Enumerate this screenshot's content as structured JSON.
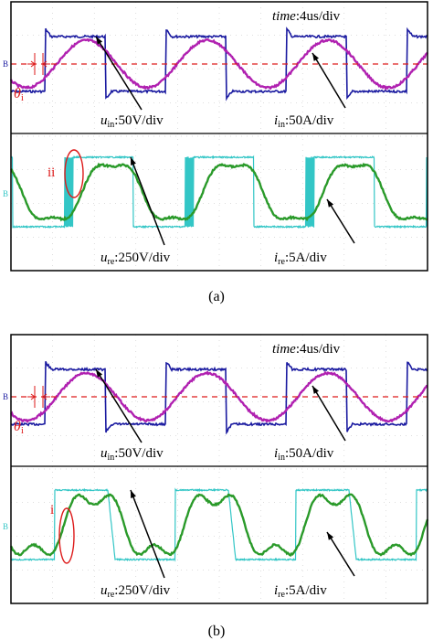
{
  "colors": {
    "u_in": "#1a1aa0",
    "i_in": "#b020b0",
    "u_re": "#33c6c6",
    "i_re": "#2a9a2a",
    "annotation": "#dd1a1a",
    "frame": "#000000",
    "grid": "#bdbdbd"
  },
  "channel_markers": {
    "top": "B",
    "bottom": "B"
  },
  "panels": [
    {
      "sub_label": "(a)",
      "time_label_italic": "time",
      "time_label_rest": ":4us/div",
      "theta": {
        "base": "θ",
        "sub": "i"
      },
      "u_in": {
        "base": "u",
        "sub": "in",
        "rest": ":50V/div"
      },
      "i_in": {
        "base": "i",
        "sub": "in",
        "rest": ":50A/div"
      },
      "u_re": {
        "base": "u",
        "sub": "re",
        "rest": ":250V/div"
      },
      "i_re": {
        "base": "i",
        "sub": "re",
        "rest": ":5A/div"
      },
      "mark": "ii"
    },
    {
      "sub_label": "(b)",
      "time_label_italic": "time",
      "time_label_rest": ":4us/div",
      "theta": {
        "base": "θ",
        "sub": "i"
      },
      "u_in": {
        "base": "u",
        "sub": "in",
        "rest": ":50V/div"
      },
      "i_in": {
        "base": "i",
        "sub": "in",
        "rest": ":50A/div"
      },
      "u_re": {
        "base": "u",
        "sub": "re",
        "rest": ":250V/div"
      },
      "i_re": {
        "base": "i",
        "sub": "re",
        "rest": ":5A/div"
      },
      "mark": "i"
    }
  ]
}
